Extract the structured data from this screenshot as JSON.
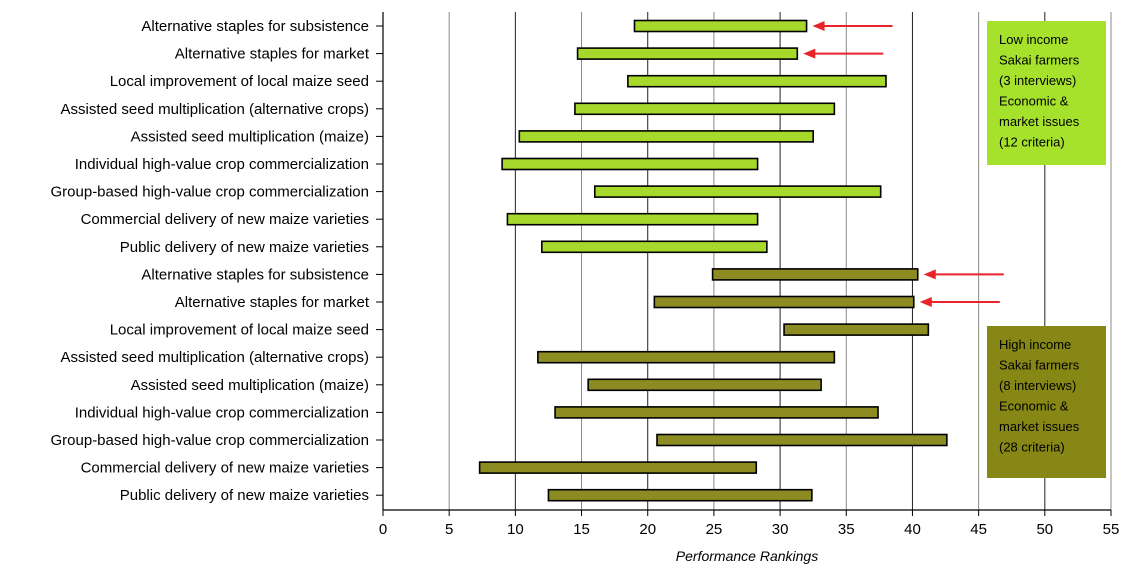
{
  "chart_data": {
    "type": "bar",
    "orientation": "horizontal-range",
    "xlabel": "Performance Rankings",
    "xlim": [
      0,
      55
    ],
    "xticks": [
      0,
      5,
      10,
      15,
      20,
      25,
      30,
      35,
      40,
      45,
      50,
      55
    ],
    "grid": "vertical",
    "groups": [
      {
        "legend": [
          "Low income",
          "Sakai farmers",
          "(3 interviews)",
          "Economic &",
          "market issues",
          "(12 criteria)"
        ],
        "color": "#a6d92c",
        "legend_color": "#a6e22c",
        "items": [
          {
            "label": "Alternative staples for subsistence",
            "start": 19.0,
            "end": 32.0,
            "arrow": true
          },
          {
            "label": "Alternative staples for market",
            "start": 14.7,
            "end": 31.3,
            "arrow": true
          },
          {
            "label": "Local improvement of local maize seed",
            "start": 18.5,
            "end": 38.0,
            "arrow": false
          },
          {
            "label": "Assisted seed multiplication (alternative crops)",
            "start": 14.5,
            "end": 34.1,
            "arrow": false
          },
          {
            "label": "Assisted seed multiplication (maize)",
            "start": 10.3,
            "end": 32.5,
            "arrow": false
          },
          {
            "label": "Individual high-value crop commercialization",
            "start": 9.0,
            "end": 28.3,
            "arrow": false
          },
          {
            "label": "Group-based high-value crop commercialization",
            "start": 16.0,
            "end": 37.6,
            "arrow": false
          },
          {
            "label": "Commercial delivery of new maize varieties",
            "start": 9.4,
            "end": 28.3,
            "arrow": false
          },
          {
            "label": "Public delivery of new maize varieties",
            "start": 12.0,
            "end": 29.0,
            "arrow": false
          }
        ]
      },
      {
        "legend": [
          "High income",
          "Sakai farmers",
          "(8 interviews)",
          "Economic &",
          "market issues",
          "(28 criteria)"
        ],
        "color": "#8c8c22",
        "legend_color": "#878716",
        "items": [
          {
            "label": "Alternative staples for subsistence",
            "start": 24.9,
            "end": 40.4,
            "arrow": true
          },
          {
            "label": "Alternative staples for market",
            "start": 20.5,
            "end": 40.1,
            "arrow": true
          },
          {
            "label": "Local improvement of local maize seed",
            "start": 30.3,
            "end": 41.2,
            "arrow": false
          },
          {
            "label": "Assisted seed multiplication (alternative crops)",
            "start": 11.7,
            "end": 34.1,
            "arrow": false
          },
          {
            "label": "Assisted seed multiplication (maize)",
            "start": 15.5,
            "end": 33.1,
            "arrow": false
          },
          {
            "label": "Individual high-value crop commercialization",
            "start": 13.0,
            "end": 37.4,
            "arrow": false
          },
          {
            "label": "Group-based high-value crop commercialization",
            "start": 20.7,
            "end": 42.6,
            "arrow": false
          },
          {
            "label": "Commercial delivery of new maize varieties",
            "start": 7.3,
            "end": 28.2,
            "arrow": false
          },
          {
            "label": "Public delivery of new maize varieties",
            "start": 12.5,
            "end": 32.4,
            "arrow": false
          }
        ]
      }
    ],
    "arrow_color": "#e8232a"
  }
}
